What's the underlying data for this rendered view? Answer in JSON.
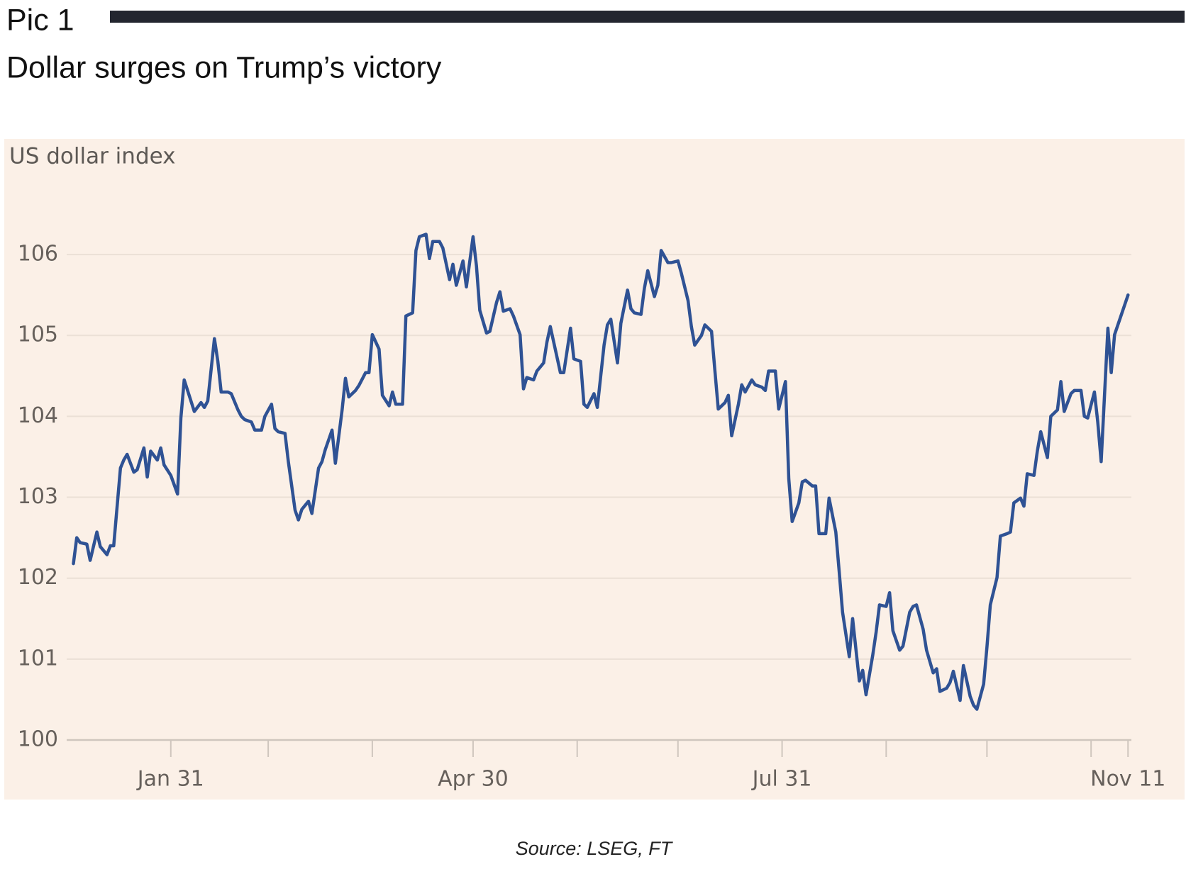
{
  "chart_data": {
    "type": "line",
    "figure_label": "Pic 1",
    "title": "Dollar surges on Trump’s victory",
    "y_label": "US dollar index",
    "source": "Source: LSEG, FT",
    "color": "#2f5294",
    "grid": true,
    "xlim": [
      0,
      317
    ],
    "xticks": [
      {
        "value": 31,
        "label": "Jan 31"
      },
      {
        "value": 121,
        "label": "Apr 30"
      },
      {
        "value": 213,
        "label": "Jul 31"
      },
      {
        "value": 316,
        "label": "Nov 11"
      }
    ],
    "xminor_ticks": [
      60,
      91,
      152,
      182,
      244,
      274,
      305
    ],
    "ylim": [
      100,
      106.5
    ],
    "yticks": [
      100,
      101,
      102,
      103,
      104,
      105,
      106
    ],
    "x": [
      2,
      3,
      4,
      6,
      7,
      9,
      10,
      12,
      13,
      14,
      16,
      17,
      18,
      20,
      21,
      23,
      24,
      25,
      27,
      28,
      29,
      31,
      33,
      34,
      35,
      37,
      38,
      40,
      41,
      42,
      44,
      45,
      46,
      48,
      49,
      51,
      52,
      53,
      55,
      56,
      58,
      59,
      61,
      62,
      63,
      65,
      66,
      68,
      69,
      70,
      72,
      73,
      75,
      76,
      77,
      79,
      80,
      82,
      83,
      84,
      86,
      87,
      89,
      90,
      91,
      93,
      94,
      96,
      97,
      98,
      100,
      101,
      103,
      104,
      105,
      107,
      108,
      109,
      111,
      112,
      114,
      115,
      116,
      118,
      119,
      121,
      122,
      123,
      125,
      126,
      128,
      129,
      130,
      132,
      133,
      135,
      136,
      137,
      139,
      140,
      142,
      143,
      144,
      146,
      147,
      148,
      150,
      151,
      153,
      154,
      155,
      157,
      158,
      160,
      161,
      162,
      164,
      165,
      167,
      168,
      169,
      171,
      172,
      173,
      175,
      176,
      177,
      179,
      180,
      182,
      183,
      185,
      186,
      187,
      189,
      190,
      192,
      193,
      194,
      196,
      197,
      198,
      200,
      201,
      202,
      204,
      205,
      207,
      208,
      209,
      211,
      212,
      214,
      215,
      216,
      218,
      219,
      220,
      222,
      223,
      224,
      226,
      227,
      229,
      230,
      231,
      233,
      234,
      236,
      237,
      238,
      240,
      241,
      242,
      244,
      245,
      246,
      248,
      249,
      251,
      252,
      253,
      255,
      256,
      258,
      259,
      260,
      262,
      263,
      264,
      266,
      267,
      269,
      270,
      271,
      273,
      274,
      275,
      277,
      278,
      280,
      281,
      282,
      284,
      285,
      286,
      288,
      289,
      290,
      292,
      293,
      295,
      296,
      297,
      299,
      300,
      302,
      303,
      304,
      306,
      307,
      308,
      310,
      311,
      312,
      316
    ],
    "values": [
      102.18,
      102.5,
      102.44,
      102.42,
      102.22,
      102.57,
      102.39,
      102.29,
      102.4,
      102.4,
      103.36,
      103.46,
      103.53,
      103.31,
      103.34,
      103.61,
      103.25,
      103.57,
      103.46,
      103.61,
      103.4,
      103.27,
      103.04,
      103.98,
      104.45,
      104.19,
      104.06,
      104.17,
      104.11,
      104.19,
      104.96,
      104.68,
      104.3,
      104.3,
      104.28,
      104.08,
      104.0,
      103.96,
      103.93,
      103.83,
      103.83,
      104.0,
      104.15,
      103.85,
      103.81,
      103.79,
      103.44,
      102.84,
      102.72,
      102.85,
      102.95,
      102.8,
      103.36,
      103.44,
      103.59,
      103.83,
      103.42,
      104.08,
      104.47,
      104.24,
      104.32,
      104.38,
      104.54,
      104.54,
      105.01,
      104.83,
      104.26,
      104.13,
      104.3,
      104.15,
      104.15,
      105.24,
      105.28,
      106.05,
      106.22,
      106.25,
      105.95,
      106.16,
      106.16,
      106.08,
      105.69,
      105.88,
      105.62,
      105.92,
      105.6,
      106.22,
      105.86,
      105.31,
      105.03,
      105.05,
      105.41,
      105.54,
      105.3,
      105.33,
      105.24,
      105.01,
      104.34,
      104.48,
      104.45,
      104.56,
      104.66,
      104.92,
      105.11,
      104.73,
      104.54,
      104.54,
      105.09,
      104.71,
      104.68,
      104.15,
      104.11,
      104.28,
      104.11,
      104.88,
      105.13,
      105.2,
      104.66,
      105.15,
      105.56,
      105.33,
      105.28,
      105.26,
      105.58,
      105.8,
      105.48,
      105.62,
      106.05,
      105.9,
      105.9,
      105.92,
      105.77,
      105.43,
      105.11,
      104.88,
      105.0,
      105.13,
      105.05,
      104.56,
      104.09,
      104.17,
      104.26,
      103.76,
      104.15,
      104.39,
      104.3,
      104.45,
      104.39,
      104.36,
      104.32,
      104.56,
      104.56,
      104.09,
      104.43,
      103.23,
      102.7,
      102.93,
      103.19,
      103.21,
      103.14,
      103.14,
      102.55,
      102.55,
      102.99,
      102.57,
      102.08,
      101.58,
      101.03,
      101.5,
      100.73,
      100.86,
      100.56,
      101.05,
      101.33,
      101.67,
      101.65,
      101.82,
      101.35,
      101.11,
      101.16,
      101.58,
      101.65,
      101.67,
      101.37,
      101.11,
      100.83,
      100.88,
      100.6,
      100.64,
      100.71,
      100.85,
      100.49,
      100.92,
      100.54,
      100.43,
      100.38,
      100.69,
      101.15,
      101.67,
      102.01,
      102.52,
      102.55,
      102.57,
      102.93,
      102.99,
      102.89,
      103.29,
      103.27,
      103.57,
      103.81,
      103.49,
      104.0,
      104.08,
      104.43,
      104.06,
      104.28,
      104.32,
      104.32,
      104.0,
      103.98,
      104.3,
      103.93,
      103.44,
      105.09,
      104.54,
      105.01,
      105.5
    ]
  }
}
